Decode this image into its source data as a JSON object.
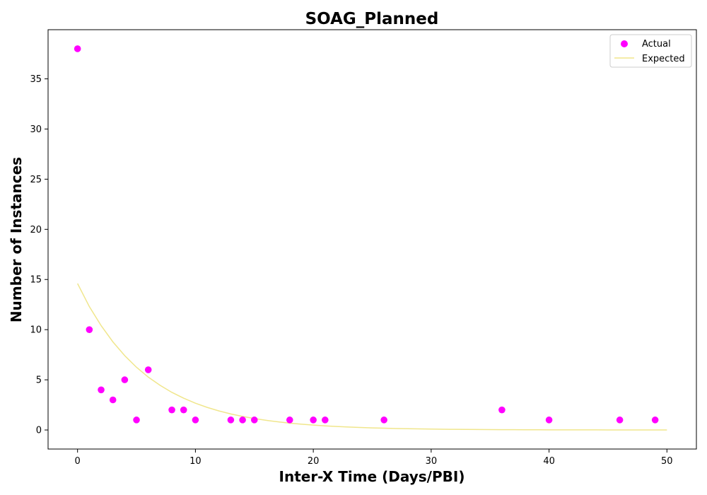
{
  "chart_data": {
    "type": "scatter",
    "title": "SOAG_Planned",
    "xlabel": "Inter-X Time (Days/PBI)",
    "ylabel": "Number of Instances",
    "xlim": [
      -2.5,
      52.5
    ],
    "ylim": [
      -1.9,
      39.9
    ],
    "xticks": [
      0,
      10,
      20,
      30,
      40,
      50
    ],
    "yticks": [
      0,
      5,
      10,
      15,
      20,
      25,
      30,
      35
    ],
    "grid": false,
    "legend_position": "top-right",
    "series": [
      {
        "name": "Actual",
        "kind": "scatter",
        "color": "#ff00ff",
        "x": [
          0,
          1,
          2,
          3,
          4,
          5,
          6,
          8,
          9,
          10,
          13,
          14,
          15,
          18,
          20,
          21,
          26,
          36,
          40,
          46,
          49
        ],
        "y": [
          38,
          10,
          4,
          3,
          5,
          1,
          6,
          2,
          2,
          1,
          1,
          1,
          1,
          1,
          1,
          1,
          1,
          2,
          1,
          1,
          1
        ]
      },
      {
        "name": "Expected",
        "kind": "line",
        "color": "#f0e68c",
        "x": [
          0,
          1,
          2,
          3,
          4,
          5,
          6,
          7,
          8,
          9,
          10,
          11,
          12,
          13,
          14,
          15,
          16,
          17,
          18,
          19,
          20,
          21,
          22,
          23,
          24,
          25,
          26,
          27,
          28,
          29,
          30,
          31,
          32,
          33,
          34,
          35,
          36,
          37,
          38,
          39,
          40,
          41,
          42,
          43,
          44,
          45,
          46,
          47,
          48,
          49,
          50
        ],
        "y": [
          14.6,
          12.3,
          10.4,
          8.78,
          7.41,
          6.25,
          5.27,
          4.45,
          3.75,
          3.17,
          2.67,
          2.25,
          1.9,
          1.6,
          1.35,
          1.14,
          0.963,
          0.812,
          0.685,
          0.578,
          0.488,
          0.411,
          0.347,
          0.293,
          0.247,
          0.208,
          0.176,
          0.148,
          0.125,
          0.105,
          0.089,
          0.075,
          0.063,
          0.053,
          0.045,
          0.038,
          0.032,
          0.027,
          0.023,
          0.019,
          0.016,
          0.014,
          0.012,
          0.01,
          0.008,
          0.007,
          0.006,
          0.005,
          0.004,
          0.004,
          0.003
        ]
      }
    ]
  }
}
